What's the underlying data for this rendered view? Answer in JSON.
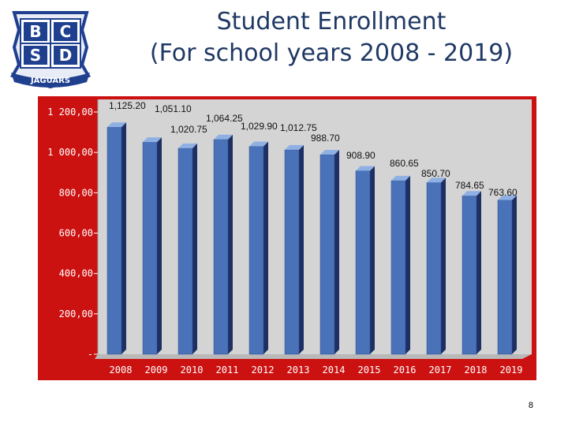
{
  "logo": {
    "letters": [
      "B",
      "C",
      "S",
      "D"
    ],
    "banner": "JAGUARS",
    "colors": {
      "primary": "#1f3f8f",
      "light": "#e8ecf6"
    }
  },
  "title": {
    "line1": "Student Enrollment",
    "line2": "(For school years 2008 - 2019)"
  },
  "page_number": "8",
  "colors": {
    "frame": "#cc1111",
    "plot_bg": "#d4d4d4",
    "bar": "#4a72b8",
    "bar_side": "#1e2f63",
    "bar_top": "#8fb0e3"
  },
  "chart_data": {
    "type": "bar",
    "title": "Student Enrollment (For school years 2008 - 2019)",
    "categories": [
      "2008",
      "2009",
      "2010",
      "2011",
      "2012",
      "2013",
      "2014",
      "2015",
      "2016",
      "2017",
      "2018",
      "2019"
    ],
    "values": [
      1125.2,
      1051.1,
      1020.75,
      1064.25,
      1029.9,
      1012.75,
      988.7,
      908.9,
      860.65,
      850.7,
      784.65,
      763.6
    ],
    "data_labels": [
      "1,125.20",
      "1,051.10",
      "1,020.75",
      "1,064.25",
      "1,029.90",
      "1,012.75",
      "988.70",
      "908.90",
      "860.65",
      "850.70",
      "784.65",
      "763.60"
    ],
    "y_ticks": [
      0,
      200,
      400,
      600,
      800,
      1000,
      1200
    ],
    "y_tick_labels": [
      "-",
      "200,00",
      "400,00",
      "600,00",
      "800,00",
      "1 000,00",
      "1 200,00"
    ],
    "ylim": [
      0,
      1200
    ],
    "xlabel": "",
    "ylabel": "",
    "grid": false,
    "legend": "none"
  }
}
